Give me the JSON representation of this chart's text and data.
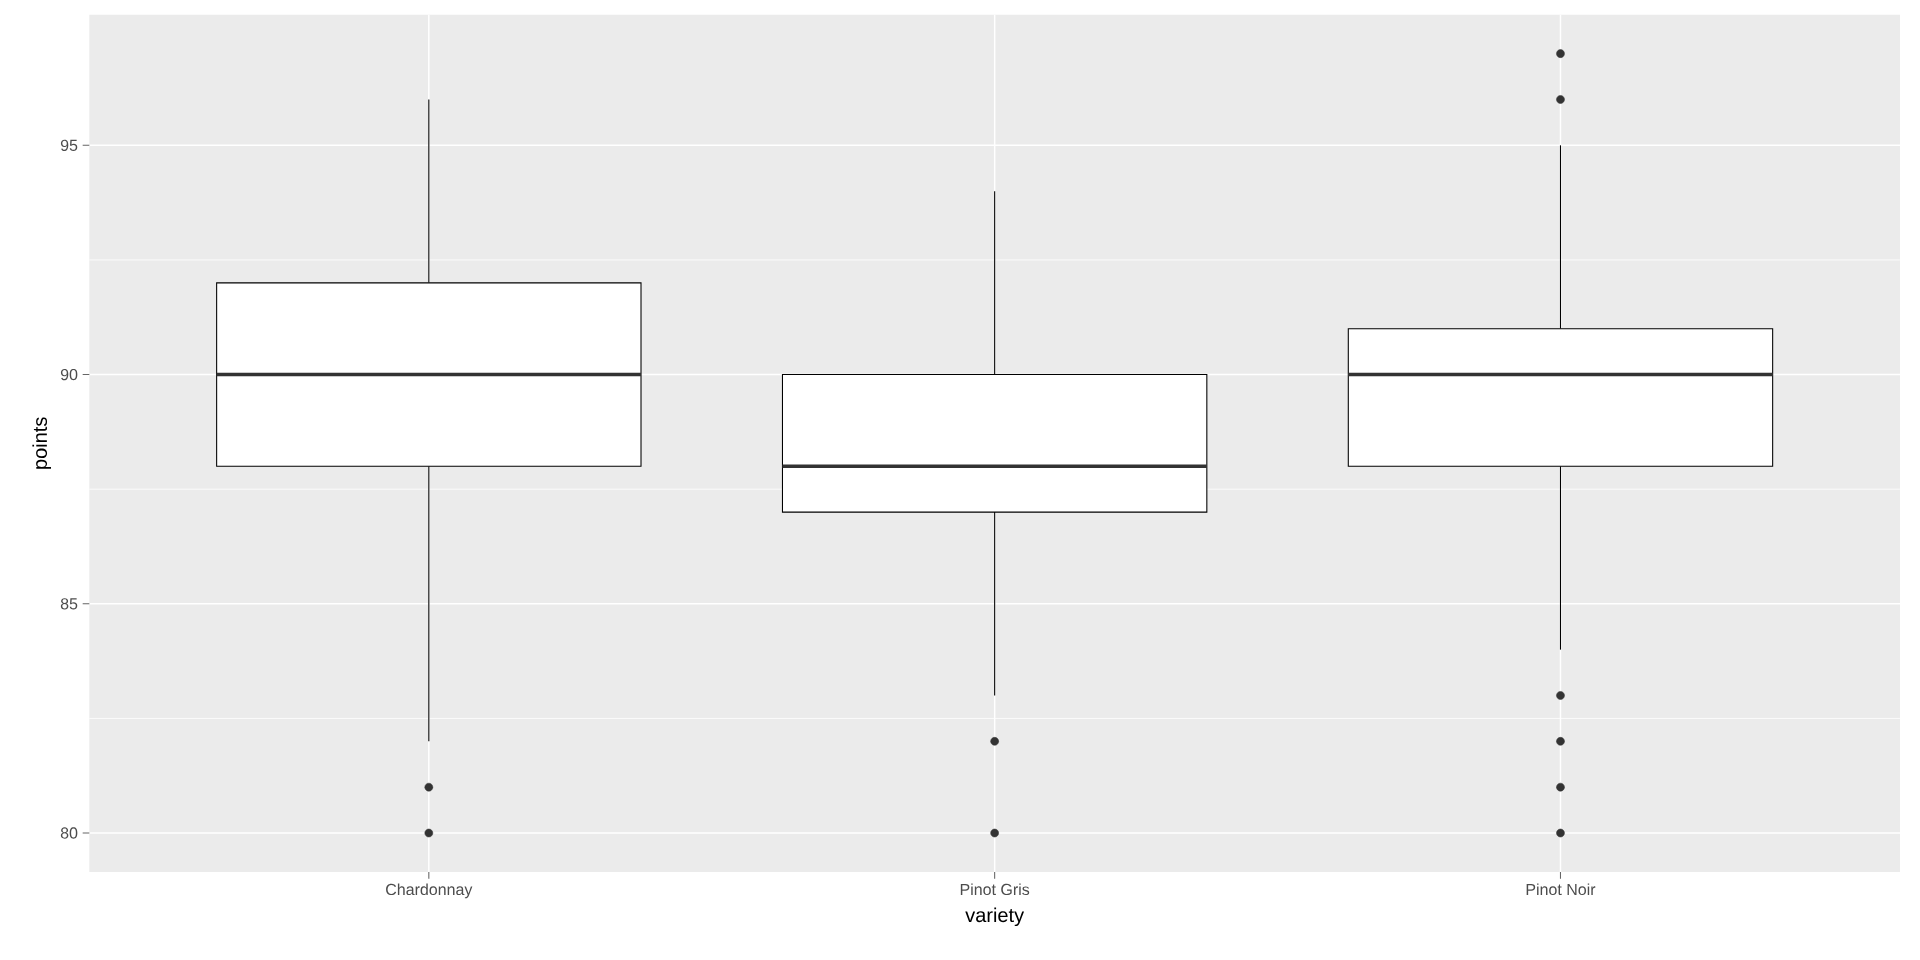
{
  "chart_data": {
    "type": "box",
    "xlabel": "variety",
    "ylabel": "points",
    "categories": [
      "Chardonnay",
      "Pinot Gris",
      "Pinot Noir"
    ],
    "boxes": [
      {
        "low": 82,
        "q1": 88,
        "median": 90,
        "q3": 92,
        "high": 96,
        "outliers": [
          80,
          81
        ]
      },
      {
        "low": 83,
        "q1": 87,
        "median": 88,
        "q3": 90,
        "high": 94,
        "outliers": [
          80,
          82
        ]
      },
      {
        "low": 84,
        "q1": 88,
        "median": 90,
        "q3": 91,
        "high": 95,
        "outliers": [
          80,
          81,
          82,
          83,
          96,
          97
        ]
      }
    ],
    "ylim": [
      79.15,
      97.85
    ],
    "yticks": [
      80,
      85,
      90,
      95
    ],
    "grid": true
  }
}
